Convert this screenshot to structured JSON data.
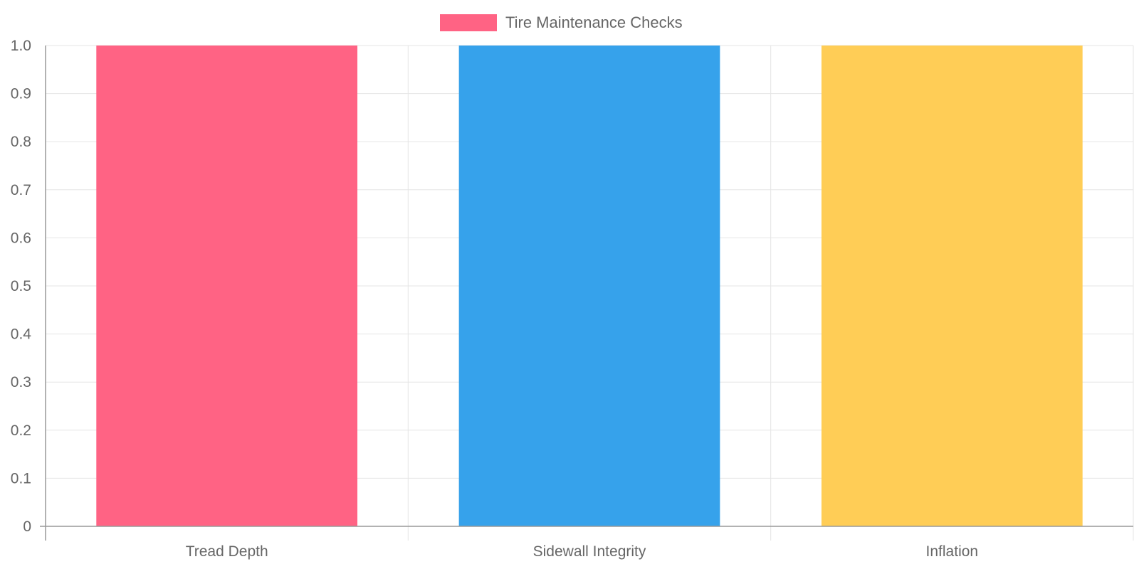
{
  "chart_data": {
    "type": "bar",
    "categories": [
      "Tread Depth",
      "Sidewall Integrity",
      "Inflation"
    ],
    "series": [
      {
        "name": "Tire Maintenance Checks",
        "values": [
          1,
          1,
          1
        ],
        "colors": [
          "#ff6384",
          "#36a2eb",
          "#ffcd56"
        ]
      }
    ],
    "ylim": [
      0,
      1
    ],
    "yticks": [
      "0",
      "0.1",
      "0.2",
      "0.3",
      "0.4",
      "0.5",
      "0.6",
      "0.7",
      "0.8",
      "0.9",
      "1.0"
    ],
    "grid": true,
    "legend_position": "top-center",
    "legend_color": "#ff6384"
  }
}
